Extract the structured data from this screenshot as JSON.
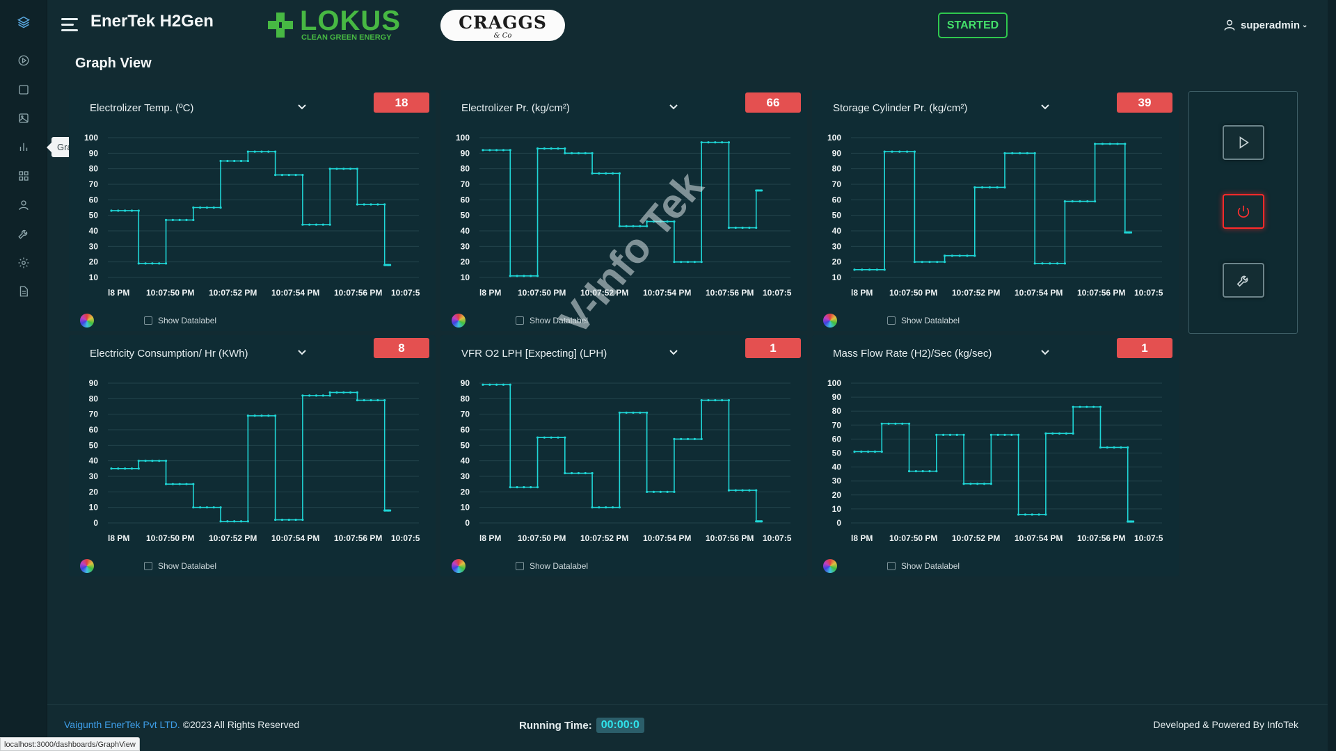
{
  "header": {
    "app_title": "EnerTek H2Gen",
    "lokus_word": "LOKUS",
    "lokus_tag": "CLEAN GREEN ENERGY",
    "craggs_word": "CRAGGS",
    "craggs_sub": "& Co",
    "status": "STARTED",
    "user": "superadmin",
    "status_color": "#2fc84e"
  },
  "page_title": "Graph View",
  "sidebar": {
    "tooltip": "Graph View",
    "icons": [
      "layers-icon",
      "play-circle-icon",
      "square-icon",
      "image-icon",
      "bar-chart-icon",
      "grid-icon",
      "user-icon",
      "wrench-icon",
      "gear-icon",
      "document-icon"
    ]
  },
  "cards": [
    {
      "title": "Electrolizer Temp. (ºC)",
      "value": "18",
      "show_datalabel": "Show Datalabel"
    },
    {
      "title": "Electrolizer Pr. (kg/cm²)",
      "value": "66",
      "show_datalabel": "Show Datalabel"
    },
    {
      "title": "Storage Cylinder Pr. (kg/cm²)",
      "value": "39",
      "show_datalabel": "Show Datalabel"
    },
    {
      "title": "Electricity Consumption/ Hr (KWh)",
      "value": "8",
      "show_datalabel": "Show Datalabel"
    },
    {
      "title": "VFR O2 LPH [Expecting] (LPH)",
      "value": "1",
      "show_datalabel": "Show Datalabel"
    },
    {
      "title": "Mass Flow Rate (H2)/Sec (kg/sec)",
      "value": "1",
      "show_datalabel": "Show Datalabel"
    }
  ],
  "chart_data": [
    {
      "type": "line",
      "title": "Electrolizer Temp. (ºC)",
      "x": [
        "l8 PM",
        "10:07:50 PM",
        "10:07:52 PM",
        "10:07:54 PM",
        "10:07:56 PM",
        "10:07:5"
      ],
      "yticks": [
        10,
        20,
        30,
        40,
        50,
        60,
        70,
        80,
        90,
        100
      ],
      "ylim": [
        10,
        100
      ],
      "steps": [
        53,
        19,
        47,
        55,
        85,
        91,
        76,
        44,
        80,
        57,
        18
      ]
    },
    {
      "type": "line",
      "title": "Electrolizer Pr. (kg/cm²)",
      "x": [
        "l8 PM",
        "10:07:50 PM",
        "10:07:52 PM",
        "10:07:54 PM",
        "10:07:56 PM",
        "10:07:5"
      ],
      "yticks": [
        10,
        20,
        30,
        40,
        50,
        60,
        70,
        80,
        90,
        100
      ],
      "ylim": [
        10,
        100
      ],
      "steps": [
        92,
        11,
        93,
        90,
        77,
        43,
        46,
        20,
        97,
        42,
        66
      ]
    },
    {
      "type": "line",
      "title": "Storage Cylinder Pr. (kg/cm²)",
      "x": [
        "l8 PM",
        "10:07:50 PM",
        "10:07:52 PM",
        "10:07:54 PM",
        "10:07:56 PM",
        "10:07:5"
      ],
      "yticks": [
        10,
        20,
        30,
        40,
        50,
        60,
        70,
        80,
        90,
        100
      ],
      "ylim": [
        10,
        100
      ],
      "steps": [
        15,
        91,
        20,
        24,
        68,
        90,
        19,
        59,
        96,
        39
      ]
    },
    {
      "type": "line",
      "title": "Electricity Consumption/ Hr (KWh)",
      "x": [
        "l8 PM",
        "10:07:50 PM",
        "10:07:52 PM",
        "10:07:54 PM",
        "10:07:56 PM",
        "10:07:5"
      ],
      "yticks": [
        0,
        10,
        20,
        30,
        40,
        50,
        60,
        70,
        80,
        90
      ],
      "ylim": [
        0,
        90
      ],
      "steps": [
        35,
        40,
        25,
        10,
        1,
        69,
        2,
        82,
        84,
        79,
        8
      ]
    },
    {
      "type": "line",
      "title": "VFR O2 LPH [Expecting] (LPH)",
      "x": [
        "l8 PM",
        "10:07:50 PM",
        "10:07:52 PM",
        "10:07:54 PM",
        "10:07:56 PM",
        "10:07:5"
      ],
      "yticks": [
        0,
        10,
        20,
        30,
        40,
        50,
        60,
        70,
        80,
        90
      ],
      "ylim": [
        0,
        90
      ],
      "steps": [
        89,
        23,
        55,
        32,
        10,
        71,
        20,
        54,
        79,
        21,
        1
      ]
    },
    {
      "type": "line",
      "title": "Mass Flow Rate (H2)/Sec (kg/sec)",
      "x": [
        "l8 PM",
        "10:07:50 PM",
        "10:07:52 PM",
        "10:07:54 PM",
        "10:07:56 PM",
        "10:07:5"
      ],
      "yticks": [
        0,
        10,
        20,
        30,
        40,
        50,
        60,
        70,
        80,
        90,
        100
      ],
      "ylim": [
        0,
        100
      ],
      "steps": [
        51,
        71,
        37,
        63,
        28,
        63,
        6,
        64,
        83,
        54,
        1
      ]
    }
  ],
  "watermark": "V-Info Tek",
  "footer": {
    "company": "Vaigunth EnerTek Pvt LTD.",
    "copyright": "©2023 All Rights Reserved",
    "running_label": "Running Time:",
    "running_time": "00:00:0",
    "powered": "Developed & Powered By InfoTek"
  },
  "url": "localhost:3000/dashboards/GraphView",
  "colors": {
    "line": "#1fd6d6",
    "badge": "#e45050",
    "stop": "#ff2a2a"
  }
}
